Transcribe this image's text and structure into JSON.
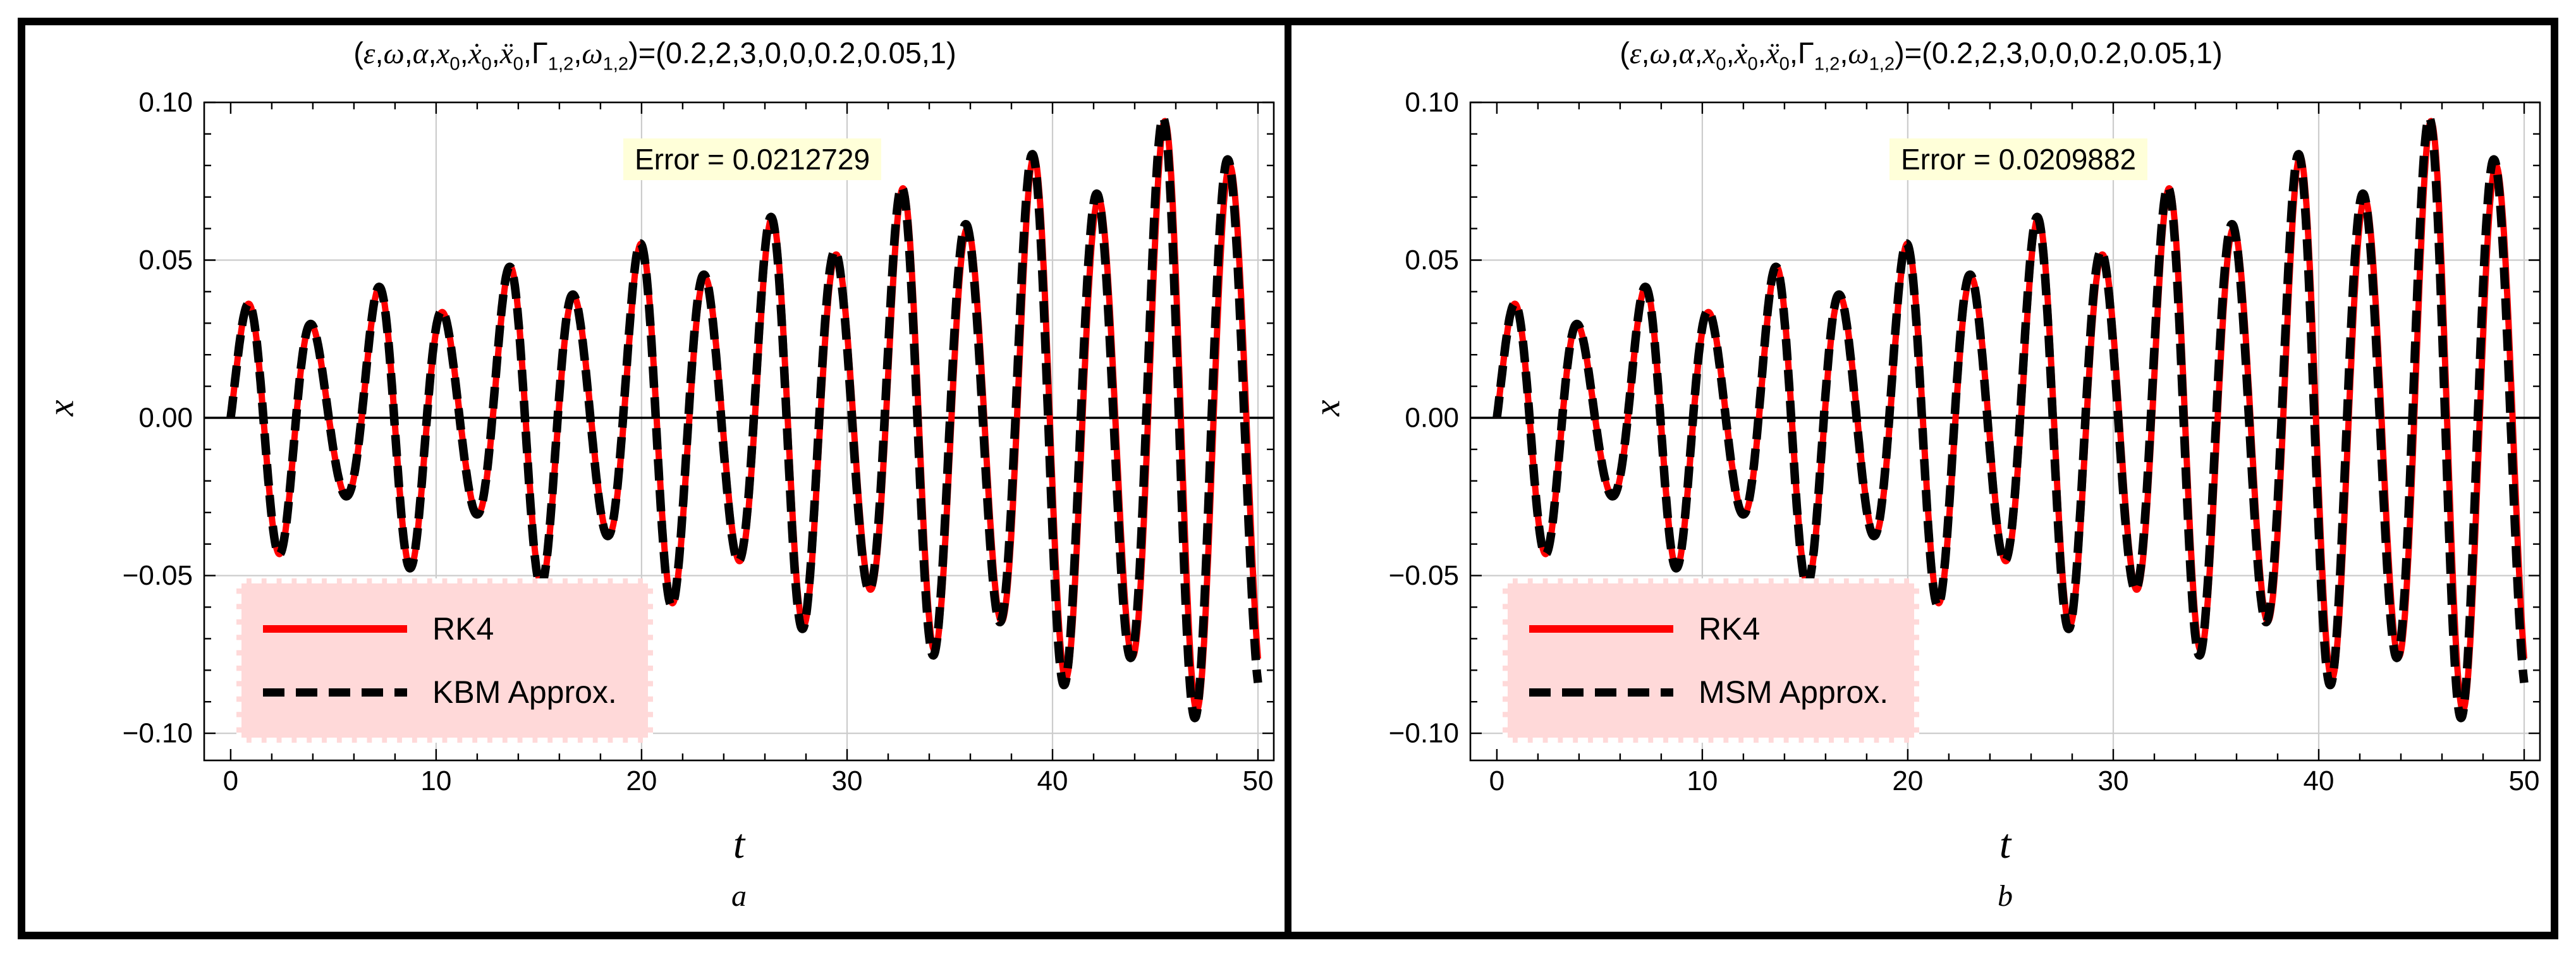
{
  "colors": {
    "rk4": "#FF0000",
    "approx": "#000000",
    "legend_bg": "#FFD9D9",
    "annotation_bg": "#FFFFD9",
    "grid": "#CCCCCC",
    "frame": "#000000"
  },
  "panels": [
    {
      "title_segments": [
        {
          "s": "n",
          "t": "("
        },
        {
          "s": "i",
          "t": "ε"
        },
        {
          "s": "n",
          "t": ","
        },
        {
          "s": "i",
          "t": "ω"
        },
        {
          "s": "n",
          "t": ","
        },
        {
          "s": "i",
          "t": "α"
        },
        {
          "s": "n",
          "t": ","
        },
        {
          "s": "i",
          "t": "x"
        },
        {
          "s": "sub",
          "t": "0"
        },
        {
          "s": "n",
          "t": ","
        },
        {
          "s": "i",
          "t": "ẋ"
        },
        {
          "s": "sub",
          "t": "0"
        },
        {
          "s": "n",
          "t": ","
        },
        {
          "s": "i",
          "t": "ẍ"
        },
        {
          "s": "sub",
          "t": "0"
        },
        {
          "s": "n",
          "t": ","
        },
        {
          "s": "n",
          "t": "Γ"
        },
        {
          "s": "sub",
          "t": "1,2"
        },
        {
          "s": "n",
          "t": ","
        },
        {
          "s": "i",
          "t": "ω"
        },
        {
          "s": "sub",
          "t": "1,2"
        },
        {
          "s": "n",
          "t": ")=(0.2,2,3,0,0,0.2,0.05,1)"
        }
      ],
      "error_label": "Error = 0.0212729",
      "legend": {
        "entries": [
          {
            "label": "RK4"
          },
          {
            "label": "KBM Approx."
          }
        ]
      },
      "xlabel": "t",
      "ylabel": "x",
      "sublabel": "a"
    },
    {
      "title_segments": [
        {
          "s": "n",
          "t": "("
        },
        {
          "s": "i",
          "t": "ε"
        },
        {
          "s": "n",
          "t": ","
        },
        {
          "s": "i",
          "t": "ω"
        },
        {
          "s": "n",
          "t": ","
        },
        {
          "s": "i",
          "t": "α"
        },
        {
          "s": "n",
          "t": ","
        },
        {
          "s": "i",
          "t": "x"
        },
        {
          "s": "sub",
          "t": "0"
        },
        {
          "s": "n",
          "t": ","
        },
        {
          "s": "i",
          "t": "ẋ"
        },
        {
          "s": "sub",
          "t": "0"
        },
        {
          "s": "n",
          "t": ","
        },
        {
          "s": "i",
          "t": "ẍ"
        },
        {
          "s": "sub",
          "t": "0"
        },
        {
          "s": "n",
          "t": ","
        },
        {
          "s": "n",
          "t": "Γ"
        },
        {
          "s": "sub",
          "t": "1,2"
        },
        {
          "s": "n",
          "t": ","
        },
        {
          "s": "i",
          "t": "ω"
        },
        {
          "s": "sub",
          "t": "1,2"
        },
        {
          "s": "n",
          "t": ")=(0.2,2,3,0,0,0.2,0.05,1)"
        }
      ],
      "error_label": "Error = 0.0209882",
      "legend": {
        "entries": [
          {
            "label": "RK4"
          },
          {
            "label": "MSM Approx."
          }
        ]
      },
      "xlabel": "t",
      "ylabel": "x",
      "sublabel": "b"
    }
  ],
  "chart_data": [
    {
      "type": "line",
      "title": "(ε,ω,α,x0,ẋ0,ẍ0,Γ1,2,ω1,2)=(0.2,2,3,0,0,0.2,0.05,1)",
      "xlabel": "t",
      "ylabel": "x",
      "xlim": [
        -1.29,
        50.77
      ],
      "ylim": [
        -0.1086,
        0.1
      ],
      "xticks": {
        "values": [
          0,
          10,
          20,
          30,
          40,
          50
        ],
        "labels": [
          "0",
          "10",
          "20",
          "30",
          "40",
          "50"
        ],
        "minor_step": 2
      },
      "yticks": {
        "values": [
          0.1,
          0.05,
          0.0,
          -0.05,
          -0.1
        ],
        "labels": [
          "0.10",
          "0.05",
          "0.00",
          "−0.05",
          "−0.10"
        ],
        "minor_step": 0.01
      },
      "gridlines": {
        "x": [
          10,
          20,
          30,
          40,
          50
        ],
        "y": [
          0.05,
          -0.05,
          -0.1
        ]
      },
      "zero_axis": true,
      "annotation": {
        "text": "Error = 0.0212729",
        "x": 25.4,
        "y": 0.082
      },
      "legend_position": "lower-left",
      "series": [
        {
          "name": "RK4",
          "color": "#FF0000",
          "style": "solid",
          "model": {
            "a0": 0.0312,
            "a1": 0.0006,
            "a2": 1.25e-05,
            "mod_amp": 0.0113,
            "mod_freq": 1.0,
            "mod_phase": 2.0,
            "w": 1.97,
            "amp_growth": 0,
            "t_range": [
              0,
              50
            ],
            "dt": 0.025
          }
        },
        {
          "name": "KBM Approx.",
          "color": "#000000",
          "style": "dashed",
          "model": {
            "a0": 0.0312,
            "a1": 0.0006,
            "a2": 1.25e-05,
            "mod_amp": 0.0113,
            "mod_freq": 1.0,
            "mod_phase": 2.0,
            "w": 1.974,
            "amp_growth": 0.0004,
            "t_range": [
              0,
              50
            ],
            "dt": 0.025
          }
        }
      ],
      "observed_extrema": {
        "peaks": [
          [
            0.9,
            0.037
          ],
          [
            4.3,
            0.026
          ],
          [
            7.6,
            0.042
          ],
          [
            10.7,
            0.031
          ],
          [
            13.7,
            0.047
          ],
          [
            16.8,
            0.038
          ],
          [
            19.9,
            0.052
          ],
          [
            23.1,
            0.044
          ],
          [
            26.3,
            0.059
          ],
          [
            29.6,
            0.053
          ],
          [
            32.5,
            0.067
          ],
          [
            35.8,
            0.063
          ],
          [
            38.9,
            0.076
          ],
          [
            42.1,
            0.073
          ],
          [
            45.2,
            0.087
          ],
          [
            48.6,
            0.083
          ]
        ],
        "troughs": [
          [
            2.5,
            -0.042
          ],
          [
            6.0,
            -0.028
          ],
          [
            9.2,
            -0.047
          ],
          [
            12.2,
            -0.033
          ],
          [
            15.3,
            -0.052
          ],
          [
            18.3,
            -0.037
          ],
          [
            21.1,
            -0.055
          ],
          [
            24.5,
            -0.042
          ],
          [
            27.7,
            -0.063
          ],
          [
            30.9,
            -0.051
          ],
          [
            34.2,
            -0.069
          ],
          [
            37.4,
            -0.062
          ],
          [
            40.6,
            -0.081
          ],
          [
            43.8,
            -0.071
          ],
          [
            47.1,
            -0.092
          ]
        ]
      }
    },
    {
      "type": "line",
      "title": "(ε,ω,α,x0,ẋ0,ẍ0,Γ1,2,ω1,2)=(0.2,2,3,0,0,0.2,0.05,1)",
      "xlabel": "t",
      "ylabel": "x",
      "xlim": [
        -1.29,
        50.77
      ],
      "ylim": [
        -0.1086,
        0.1
      ],
      "xticks": {
        "values": [
          0,
          10,
          20,
          30,
          40,
          50
        ],
        "labels": [
          "0",
          "10",
          "20",
          "30",
          "40",
          "50"
        ],
        "minor_step": 2
      },
      "yticks": {
        "values": [
          0.1,
          0.05,
          0.0,
          -0.05,
          -0.1
        ],
        "labels": [
          "0.10",
          "0.05",
          "0.00",
          "−0.05",
          "−0.10"
        ],
        "minor_step": 0.01
      },
      "gridlines": {
        "x": [
          10,
          20,
          30,
          40,
          50
        ],
        "y": [
          0.05,
          -0.05,
          -0.1
        ]
      },
      "zero_axis": true,
      "annotation": {
        "text": "Error = 0.0209882",
        "x": 25.4,
        "y": 0.082
      },
      "legend_position": "lower-left",
      "series": [
        {
          "name": "RK4",
          "color": "#FF0000",
          "style": "solid",
          "model": {
            "a0": 0.0312,
            "a1": 0.0006,
            "a2": 1.25e-05,
            "mod_amp": 0.0113,
            "mod_freq": 1.0,
            "mod_phase": 2.0,
            "w": 1.97,
            "amp_growth": 0,
            "t_range": [
              0,
              50
            ],
            "dt": 0.025
          }
        },
        {
          "name": "MSM Approx.",
          "color": "#000000",
          "style": "dashed",
          "model": {
            "a0": 0.0312,
            "a1": 0.0006,
            "a2": 1.25e-05,
            "mod_amp": 0.0113,
            "mod_freq": 1.0,
            "mod_phase": 2.0,
            "w": 1.974,
            "amp_growth": 0.0004,
            "t_range": [
              0,
              50
            ],
            "dt": 0.025
          }
        }
      ],
      "observed_extrema": {
        "peaks": [
          [
            0.9,
            0.036
          ],
          [
            4.3,
            0.029
          ],
          [
            7.6,
            0.041
          ],
          [
            10.7,
            0.031
          ],
          [
            13.7,
            0.047
          ],
          [
            16.8,
            0.038
          ],
          [
            19.9,
            0.053
          ],
          [
            23.1,
            0.045
          ],
          [
            26.3,
            0.059
          ],
          [
            29.6,
            0.053
          ],
          [
            32.5,
            0.067
          ],
          [
            35.8,
            0.063
          ],
          [
            38.9,
            0.076
          ],
          [
            42.1,
            0.072
          ],
          [
            45.2,
            0.087
          ],
          [
            48.6,
            0.086
          ]
        ],
        "troughs": [
          [
            2.5,
            -0.042
          ],
          [
            6.0,
            -0.029
          ],
          [
            9.2,
            -0.047
          ],
          [
            12.2,
            -0.033
          ],
          [
            15.3,
            -0.052
          ],
          [
            18.3,
            -0.038
          ],
          [
            21.1,
            -0.055
          ],
          [
            24.5,
            -0.042
          ],
          [
            27.7,
            -0.063
          ],
          [
            30.9,
            -0.051
          ],
          [
            34.2,
            -0.069
          ],
          [
            37.4,
            -0.062
          ],
          [
            40.6,
            -0.081
          ],
          [
            43.8,
            -0.071
          ],
          [
            47.1,
            -0.093
          ]
        ]
      }
    }
  ]
}
